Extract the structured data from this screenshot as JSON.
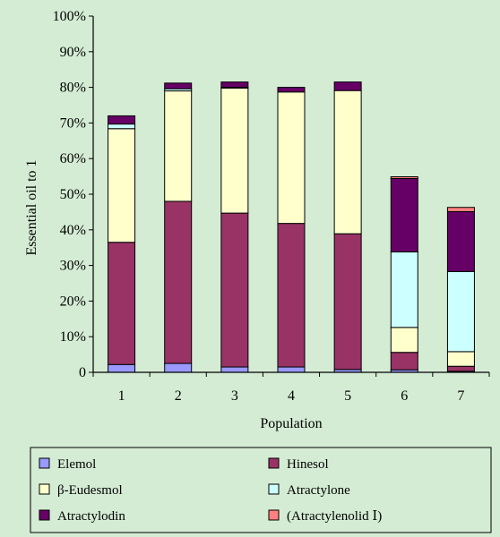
{
  "chart_data": {
    "type": "bar",
    "stacked": true,
    "title": "",
    "xlabel": "Population",
    "ylabel": "Essential oil to 1",
    "ylim": [
      0,
      100
    ],
    "yticks": [
      "0",
      "10%",
      "20%",
      "30%",
      "40%",
      "50%",
      "60%",
      "70%",
      "80%",
      "90%",
      "100%"
    ],
    "categories": [
      "1",
      "2",
      "3",
      "4",
      "5",
      "6",
      "7"
    ],
    "grid": false,
    "legend_position": "bottom",
    "series": [
      {
        "name": "Elemol",
        "color": "#9999ff",
        "values": [
          2.2,
          2.5,
          1.5,
          1.5,
          0.8,
          0.7,
          0.3
        ]
      },
      {
        "name": "Hinesol",
        "color": "#993366",
        "values": [
          34.3,
          45.5,
          43.2,
          40.3,
          38.1,
          4.9,
          1.4
        ]
      },
      {
        "name": "β-Eudesmol",
        "color": "#ffffcc",
        "values": [
          31.9,
          31.0,
          35.1,
          36.9,
          40.2,
          7.0,
          4.1
        ]
      },
      {
        "name": "Atractylone",
        "color": "#ccffff",
        "values": [
          1.3,
          0.6,
          0.2,
          0.0,
          0.0,
          21.2,
          22.5
        ]
      },
      {
        "name": "Atractylodin",
        "color": "#660066",
        "values": [
          2.3,
          1.6,
          1.5,
          1.3,
          2.4,
          20.6,
          16.8
        ]
      },
      {
        "name": "(Atractylenolid Ⅰ)",
        "color": "#ff8080",
        "values": [
          0,
          0,
          0,
          0,
          0,
          0.5,
          1.2
        ]
      }
    ]
  }
}
